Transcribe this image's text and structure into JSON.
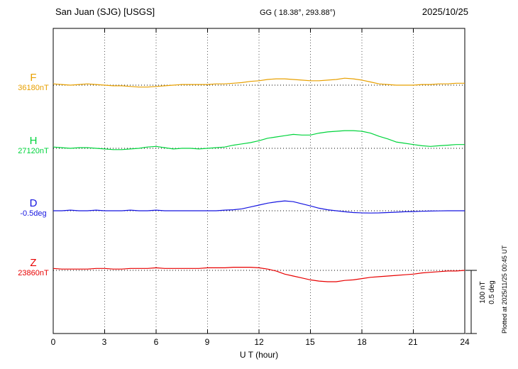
{
  "header": {
    "title": "San Juan (SJG)  [USGS]",
    "coords": "GG ( 18.38°, 293.88°)",
    "date": "2025/10/25"
  },
  "xaxis": {
    "label": "U T (hour)",
    "min": 0,
    "max": 24,
    "ticks": [
      0,
      3,
      6,
      9,
      12,
      15,
      18,
      21,
      24
    ]
  },
  "scale_bar": {
    "label_nt": "100 nT",
    "label_deg": "0.5 deg"
  },
  "plotted_at": "Plotted at 2025/11/25 00:45 UT",
  "chart_data": {
    "type": "line",
    "title": "San Juan (SJG) [USGS] magnetogram 2025/10/25",
    "xlabel": "U T (hour)",
    "x_unit": "hour UT",
    "x_start": 0,
    "x_step": 0.5,
    "x_end": 24,
    "grid": "dotted vertical every 3 h, dotted horizontal baseline per trace",
    "scale": {
      "nT_per_bar": 100,
      "deg_per_bar": 0.5
    },
    "series": [
      {
        "name": "F",
        "color": "#e8a000",
        "unit": "nT",
        "baseline_value": 36180,
        "baseline_label": "36180nT",
        "offsets": [
          2,
          1,
          0,
          1,
          2,
          1,
          0,
          -1,
          -1,
          -2,
          -3,
          -3,
          -2,
          -1,
          0,
          1,
          1,
          1,
          1,
          2,
          2,
          3,
          4,
          6,
          7,
          9,
          10,
          10,
          9,
          8,
          7,
          7,
          8,
          9,
          11,
          10,
          8,
          5,
          2,
          1,
          0,
          0,
          0,
          1,
          1,
          2,
          2,
          3,
          3
        ]
      },
      {
        "name": "H",
        "color": "#00d43c",
        "unit": "nT",
        "baseline_value": 27120,
        "baseline_label": "27120nT",
        "offsets": [
          2,
          1,
          0,
          1,
          1,
          0,
          -1,
          -2,
          -2,
          -1,
          0,
          2,
          3,
          1,
          -1,
          0,
          0,
          -1,
          0,
          1,
          2,
          5,
          7,
          9,
          12,
          16,
          18,
          20,
          22,
          21,
          21,
          24,
          26,
          27,
          28,
          28,
          27,
          24,
          19,
          15,
          10,
          8,
          6,
          4,
          3,
          4,
          5,
          6,
          6
        ]
      },
      {
        "name": "D",
        "color": "#1515e0",
        "unit": "deg",
        "baseline_value": -0.5,
        "baseline_label": "-0.5deg",
        "offsets": [
          0,
          0,
          0.005,
          0,
          0,
          0.005,
          0,
          0,
          0,
          0.005,
          0,
          0,
          0.005,
          0,
          0,
          0,
          0,
          0,
          0,
          0,
          0.005,
          0.008,
          0.015,
          0.03,
          0.045,
          0.06,
          0.07,
          0.078,
          0.072,
          0.055,
          0.038,
          0.02,
          0.008,
          0,
          -0.008,
          -0.014,
          -0.017,
          -0.018,
          -0.017,
          -0.014,
          -0.011,
          -0.008,
          -0.006,
          -0.004,
          -0.002,
          -0.001,
          0,
          0,
          0
        ]
      },
      {
        "name": "Z",
        "color": "#e80000",
        "unit": "nT",
        "baseline_value": 23860,
        "baseline_label": "23860nT",
        "offsets": [
          3,
          2,
          2,
          2,
          2,
          3,
          3,
          2,
          2,
          3,
          3,
          3,
          4,
          3,
          3,
          3,
          3,
          3,
          4,
          4,
          4,
          5,
          5,
          5,
          4,
          2,
          -1,
          -6,
          -9,
          -12,
          -15,
          -17,
          -18,
          -18,
          -16,
          -15,
          -13,
          -11,
          -10,
          -9,
          -8,
          -7,
          -6,
          -4,
          -3,
          -2,
          -1,
          -1,
          0
        ]
      }
    ]
  }
}
